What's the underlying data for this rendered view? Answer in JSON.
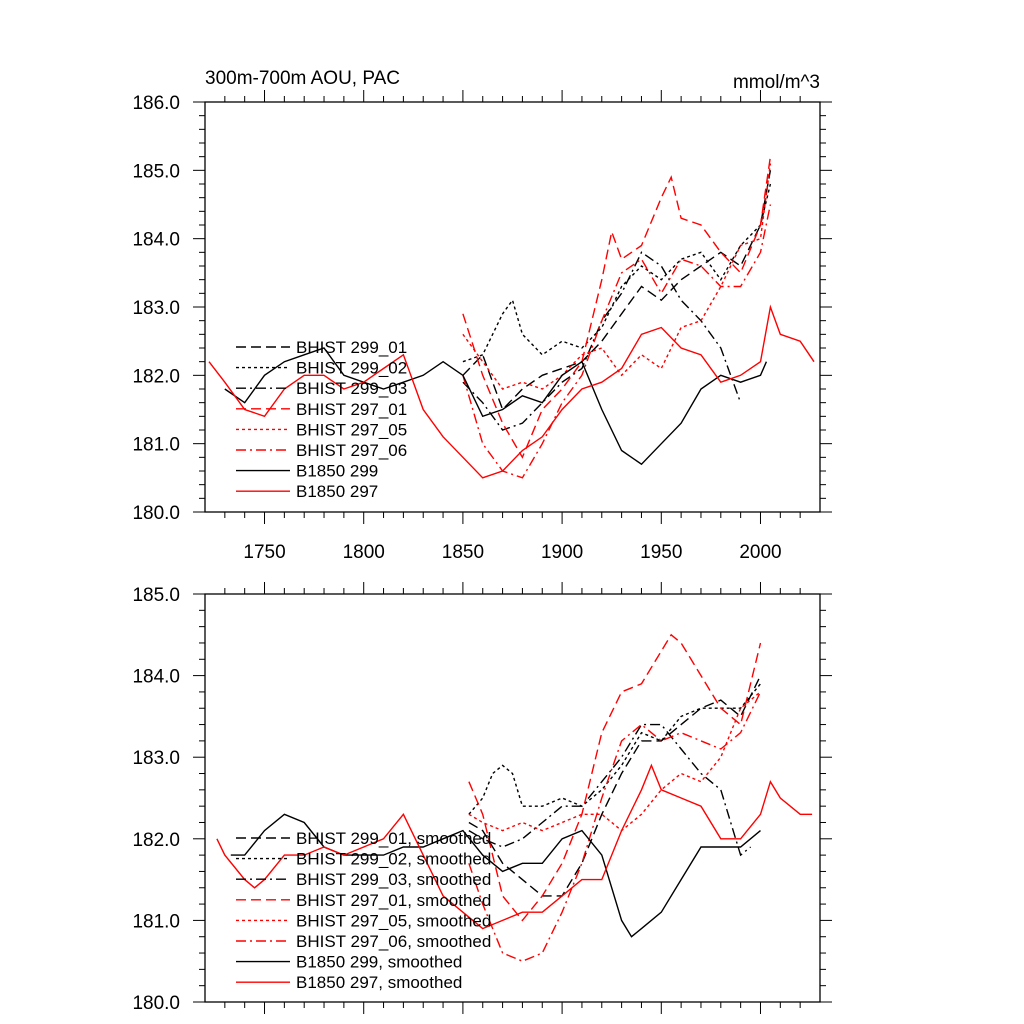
{
  "chart_data": [
    {
      "type": "line",
      "title": "300m-700m AOU, PAC",
      "units_label": "mmol/m^3",
      "xlabel": "",
      "ylabel": "",
      "xlim": [
        1720,
        2030
      ],
      "ylim": [
        180.0,
        186.0
      ],
      "y_ticks": [
        "180.0",
        "181.0",
        "182.0",
        "183.0",
        "184.0",
        "185.0",
        "186.0"
      ],
      "x_ticks": [
        "1750",
        "1800",
        "1850",
        "1900",
        "1950",
        "2000"
      ],
      "series": [
        {
          "name": "BHIST 299_01",
          "color": "#000000",
          "dash": "dash",
          "x": [
            1850,
            1860,
            1870,
            1880,
            1890,
            1900,
            1910,
            1920,
            1930,
            1940,
            1950,
            1960,
            1970,
            1980,
            1990,
            2000,
            2005
          ],
          "y": [
            182.0,
            182.3,
            181.5,
            181.8,
            182.0,
            182.1,
            182.2,
            182.5,
            182.9,
            183.3,
            183.1,
            183.4,
            183.6,
            183.8,
            183.6,
            184.2,
            185.0
          ]
        },
        {
          "name": "BHIST 299_02",
          "color": "#000000",
          "dash": "dot",
          "x": [
            1850,
            1860,
            1870,
            1875,
            1880,
            1890,
            1900,
            1910,
            1920,
            1930,
            1940,
            1950,
            1960,
            1970,
            1980,
            1990,
            2000,
            2005
          ],
          "y": [
            182.2,
            182.3,
            182.9,
            183.1,
            182.6,
            182.3,
            182.5,
            182.4,
            182.7,
            183.3,
            183.6,
            183.4,
            183.7,
            183.8,
            183.4,
            183.9,
            184.2,
            184.8
          ]
        },
        {
          "name": "BHIST 299_03",
          "color": "#000000",
          "dash": "dashdot",
          "x": [
            1850,
            1860,
            1870,
            1880,
            1890,
            1900,
            1910,
            1920,
            1930,
            1940,
            1950,
            1960,
            1970,
            1980,
            1990
          ],
          "y": [
            181.9,
            181.6,
            181.2,
            181.3,
            181.6,
            181.9,
            182.1,
            182.8,
            183.2,
            183.8,
            183.6,
            183.1,
            182.8,
            182.4,
            181.6
          ]
        },
        {
          "name": "BHIST 297_01",
          "color": "#ff0000",
          "dash": "dash",
          "x": [
            1850,
            1860,
            1870,
            1880,
            1890,
            1900,
            1910,
            1920,
            1925,
            1930,
            1940,
            1950,
            1955,
            1960,
            1970,
            1980,
            1990,
            2000,
            2005
          ],
          "y": [
            182.9,
            182.0,
            181.3,
            180.8,
            181.5,
            181.8,
            182.2,
            183.4,
            184.1,
            183.7,
            183.9,
            184.6,
            184.9,
            184.3,
            184.2,
            183.8,
            183.5,
            184.2,
            185.2
          ]
        },
        {
          "name": "BHIST 297_05",
          "color": "#ff0000",
          "dash": "dot",
          "x": [
            1850,
            1860,
            1870,
            1880,
            1890,
            1900,
            1910,
            1920,
            1930,
            1940,
            1950,
            1960,
            1970,
            1980,
            1990,
            2000,
            2005
          ],
          "y": [
            182.6,
            182.2,
            181.8,
            181.9,
            181.8,
            182.0,
            182.3,
            182.4,
            182.0,
            182.3,
            182.1,
            182.7,
            182.8,
            183.3,
            183.9,
            184.0,
            185.1
          ]
        },
        {
          "name": "BHIST 297_06",
          "color": "#ff0000",
          "dash": "dashdot",
          "x": [
            1850,
            1860,
            1870,
            1880,
            1890,
            1900,
            1910,
            1920,
            1930,
            1940,
            1950,
            1960,
            1970,
            1980,
            1990,
            2000,
            2005
          ],
          "y": [
            182.0,
            181.0,
            180.6,
            180.5,
            181.0,
            181.6,
            182.0,
            182.8,
            183.5,
            183.7,
            183.2,
            183.7,
            183.6,
            183.3,
            183.3,
            183.8,
            184.5
          ]
        },
        {
          "name": "B1850 299",
          "color": "#000000",
          "dash": "solid",
          "x": [
            1730,
            1740,
            1750,
            1760,
            1770,
            1780,
            1790,
            1800,
            1810,
            1820,
            1830,
            1840,
            1850,
            1860,
            1870,
            1880,
            1890,
            1900,
            1910,
            1920,
            1930,
            1940,
            1950,
            1960,
            1970,
            1980,
            1990,
            2000,
            2003
          ],
          "y": [
            181.8,
            181.6,
            182.0,
            182.2,
            182.3,
            182.4,
            182.0,
            181.9,
            181.8,
            181.9,
            182.0,
            182.2,
            182.0,
            181.4,
            181.5,
            181.7,
            181.6,
            182.0,
            182.2,
            181.5,
            180.9,
            180.7,
            181.0,
            181.3,
            181.8,
            182.0,
            181.9,
            182.0,
            182.2
          ]
        },
        {
          "name": "B1850 297",
          "color": "#ff0000",
          "dash": "solid",
          "x": [
            1722,
            1730,
            1740,
            1750,
            1760,
            1770,
            1780,
            1790,
            1800,
            1810,
            1820,
            1830,
            1840,
            1850,
            1860,
            1870,
            1880,
            1890,
            1900,
            1910,
            1920,
            1930,
            1940,
            1950,
            1960,
            1970,
            1980,
            1990,
            2000,
            2005,
            2010,
            2020,
            2027
          ],
          "y": [
            182.2,
            181.9,
            181.5,
            181.4,
            181.8,
            182.0,
            182.0,
            181.8,
            181.9,
            182.1,
            182.3,
            181.5,
            181.1,
            180.8,
            180.5,
            180.6,
            180.9,
            181.1,
            181.5,
            181.8,
            181.9,
            182.1,
            182.6,
            182.7,
            182.4,
            182.3,
            181.9,
            182.0,
            182.2,
            183.0,
            182.6,
            182.5,
            182.2
          ]
        }
      ]
    },
    {
      "type": "line",
      "title": "",
      "xlabel": "",
      "ylabel": "",
      "xlim": [
        1720,
        2030
      ],
      "ylim": [
        180.0,
        185.0
      ],
      "y_ticks": [
        "180.0",
        "181.0",
        "182.0",
        "183.0",
        "184.0",
        "185.0"
      ],
      "x_ticks": [],
      "series": [
        {
          "name": "BHIST 299_01, smoothed",
          "color": "#000000",
          "dash": "dash",
          "x": [
            1853,
            1860,
            1870,
            1880,
            1890,
            1900,
            1910,
            1920,
            1930,
            1940,
            1950,
            1960,
            1970,
            1980,
            1990,
            2000
          ],
          "y": [
            182.2,
            182.1,
            181.7,
            181.5,
            181.3,
            181.3,
            181.7,
            182.3,
            182.8,
            183.2,
            183.2,
            183.4,
            183.6,
            183.7,
            183.5,
            184.0
          ]
        },
        {
          "name": "BHIST 299_02, smoothed",
          "color": "#000000",
          "dash": "dot",
          "x": [
            1853,
            1860,
            1865,
            1870,
            1875,
            1880,
            1890,
            1900,
            1910,
            1920,
            1930,
            1940,
            1950,
            1960,
            1970,
            1980,
            1990,
            2000
          ],
          "y": [
            182.3,
            182.5,
            182.8,
            182.9,
            182.8,
            182.4,
            182.4,
            182.5,
            182.4,
            182.6,
            182.9,
            183.3,
            183.2,
            183.5,
            183.6,
            183.6,
            183.6,
            183.9
          ]
        },
        {
          "name": "BHIST 299_03, smoothed",
          "color": "#000000",
          "dash": "dashdot",
          "x": [
            1853,
            1860,
            1870,
            1880,
            1890,
            1900,
            1910,
            1920,
            1930,
            1940,
            1950,
            1960,
            1970,
            1980,
            1990,
            1995
          ],
          "y": [
            182.1,
            182.0,
            181.9,
            182.0,
            182.2,
            182.4,
            182.4,
            182.7,
            183.0,
            183.4,
            183.4,
            183.1,
            182.8,
            182.6,
            181.8,
            181.9
          ]
        },
        {
          "name": "BHIST 297_01, smoothed",
          "color": "#ff0000",
          "dash": "dash",
          "x": [
            1853,
            1860,
            1870,
            1880,
            1890,
            1900,
            1910,
            1920,
            1930,
            1940,
            1950,
            1955,
            1960,
            1970,
            1980,
            1990,
            2000
          ],
          "y": [
            182.7,
            182.3,
            181.3,
            181.0,
            181.3,
            181.7,
            182.3,
            183.3,
            183.8,
            183.9,
            184.3,
            184.5,
            184.4,
            184.0,
            183.6,
            183.4,
            184.4
          ]
        },
        {
          "name": "BHIST 297_05, smoothed",
          "color": "#ff0000",
          "dash": "dot",
          "x": [
            1853,
            1860,
            1870,
            1880,
            1890,
            1900,
            1910,
            1920,
            1930,
            1940,
            1950,
            1960,
            1970,
            1980,
            1990,
            2000
          ],
          "y": [
            182.3,
            182.2,
            182.1,
            182.2,
            182.1,
            182.2,
            182.3,
            182.3,
            182.1,
            182.3,
            182.6,
            182.8,
            182.7,
            183.0,
            183.6,
            183.8
          ]
        },
        {
          "name": "BHIST 297_06, smoothed",
          "color": "#ff0000",
          "dash": "dashdot",
          "x": [
            1853,
            1860,
            1870,
            1880,
            1890,
            1900,
            1910,
            1920,
            1930,
            1940,
            1950,
            1960,
            1970,
            1980,
            1990,
            2000
          ],
          "y": [
            181.7,
            181.2,
            180.6,
            180.5,
            180.6,
            181.1,
            181.7,
            182.5,
            183.2,
            183.4,
            183.2,
            183.3,
            183.2,
            183.1,
            183.3,
            183.8
          ]
        },
        {
          "name": "B1850 299, smoothed",
          "color": "#000000",
          "dash": "solid",
          "x": [
            1733,
            1740,
            1750,
            1760,
            1770,
            1780,
            1790,
            1800,
            1810,
            1820,
            1830,
            1840,
            1850,
            1860,
            1870,
            1880,
            1890,
            1900,
            1910,
            1920,
            1930,
            1935,
            1940,
            1950,
            1960,
            1970,
            1980,
            1990,
            2000
          ],
          "y": [
            181.8,
            181.8,
            182.1,
            182.3,
            182.2,
            181.9,
            181.8,
            181.8,
            181.8,
            181.9,
            181.9,
            182.0,
            182.1,
            181.8,
            181.6,
            181.7,
            181.7,
            182.0,
            182.1,
            181.8,
            181.0,
            180.8,
            180.9,
            181.1,
            181.5,
            181.9,
            181.9,
            181.9,
            182.1
          ]
        },
        {
          "name": "B1850 297, smoothed",
          "color": "#ff0000",
          "dash": "solid",
          "x": [
            1726,
            1730,
            1740,
            1745,
            1750,
            1760,
            1770,
            1780,
            1790,
            1800,
            1810,
            1820,
            1830,
            1840,
            1850,
            1860,
            1870,
            1880,
            1890,
            1900,
            1910,
            1920,
            1930,
            1940,
            1945,
            1950,
            1960,
            1970,
            1980,
            1990,
            2000,
            2005,
            2010,
            2020,
            2026
          ],
          "y": [
            182.0,
            181.8,
            181.5,
            181.4,
            181.5,
            181.8,
            181.8,
            181.9,
            181.8,
            181.9,
            182.0,
            182.3,
            181.8,
            181.3,
            181.1,
            180.9,
            181.0,
            181.1,
            181.1,
            181.3,
            181.5,
            181.5,
            182.1,
            182.6,
            182.9,
            182.6,
            182.5,
            182.4,
            182.0,
            182.0,
            182.3,
            182.7,
            182.5,
            182.3,
            182.3
          ]
        }
      ]
    }
  ]
}
